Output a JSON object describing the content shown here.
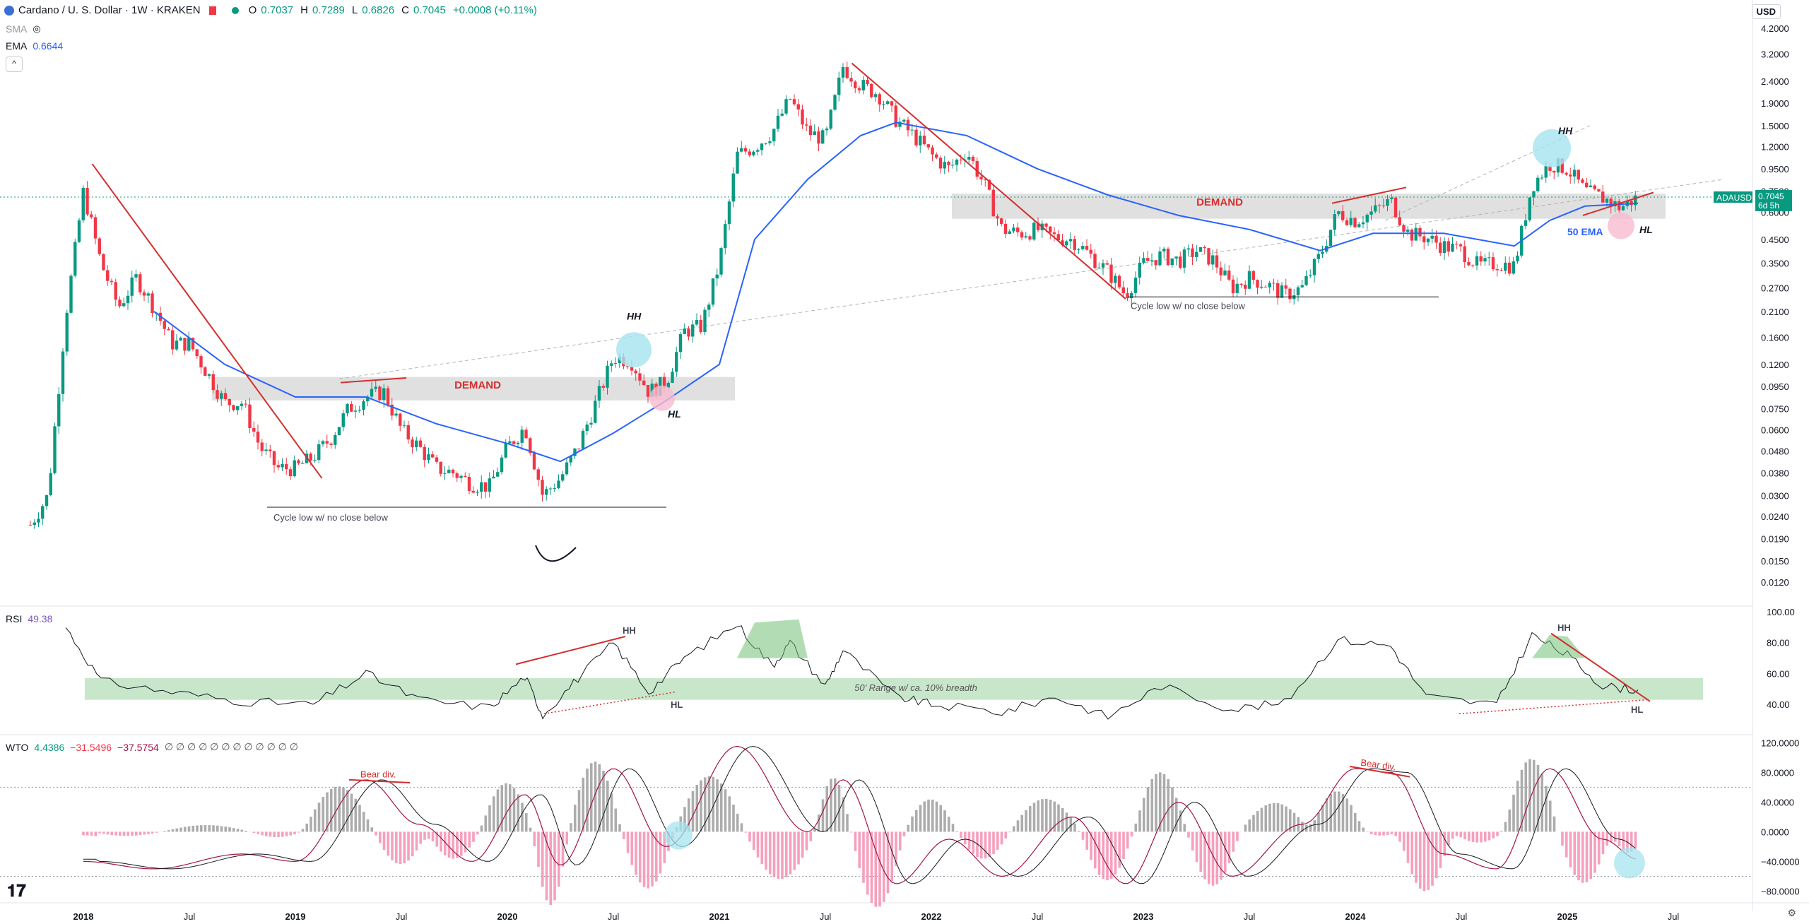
{
  "header": {
    "symbol": "Cardano / U. S. Dollar · 1W · KRAKEN",
    "o_label": "O",
    "o": "0.7037",
    "h_label": "H",
    "h": "0.7289",
    "l_label": "L",
    "l": "0.6826",
    "c_label": "C",
    "c": "0.7045",
    "change": "+0.0008 (+0.11%)"
  },
  "indicators": {
    "sma_label": "SMA",
    "ema_label": "EMA",
    "ema_value": "0.6644",
    "rsi_label": "RSI",
    "rsi_value": "49.38",
    "wto_label": "WTO",
    "wto_v1": "4.4386",
    "wto_v2": "−31.5496",
    "wto_v3": "−37.5754",
    "wto_rest": "∅ ∅ ∅ ∅ ∅ ∅ ∅ ∅ ∅ ∅ ∅ ∅"
  },
  "currency": "USD",
  "collapse_glyph": "^",
  "colors": {
    "up": "#089981",
    "down": "#f23645",
    "ema": "#2962ff",
    "trend": "#d32f2f",
    "demand": "#e0e0e0",
    "rsi_band": "#c8e6c9",
    "hh_circle": "#a5e4ef",
    "hl_circle": "#f8bbd0"
  },
  "chart_data": [
    {
      "type": "candlestick",
      "title": "Cardano / U. S. Dollar · 1W · KRAKEN",
      "scale": "log",
      "y_ticks": [
        "4.2000",
        "3.2000",
        "2.4000",
        "1.9000",
        "1.5000",
        "1.2000",
        "0.9500",
        "0.7500",
        "0.6000",
        "0.4500",
        "0.3500",
        "0.2700",
        "0.2100",
        "0.1600",
        "0.1200",
        "0.0950",
        "0.0750",
        "0.0600",
        "0.0480",
        "0.0380",
        "0.0300",
        "0.0240",
        "0.0190",
        "0.0150",
        "0.0120"
      ],
      "x_ticks": [
        "2018",
        "Jul",
        "2019",
        "Jul",
        "2020",
        "Jul",
        "2021",
        "Jul",
        "2022",
        "Jul",
        "2023",
        "Jul",
        "2024",
        "Jul",
        "2025",
        "Jul"
      ],
      "price_label": {
        "symbol": "ADAUSD",
        "value": "0.7045",
        "countdown": "6d 5h"
      },
      "ema_series_name": "50 EMA",
      "annotations": [
        "DEMAND",
        "DEMAND",
        "HH",
        "HL",
        "HH",
        "HL",
        "Cycle low w/ no close below",
        "Cycle low w/ no close below",
        "50 EMA"
      ],
      "close_path": [
        [
          "2017-10",
          0.022
        ],
        [
          "2017-11",
          0.03
        ],
        [
          "2017-12",
          0.2
        ],
        [
          "2018-01",
          0.75
        ],
        [
          "2018-02",
          0.35
        ],
        [
          "2018-03",
          0.22
        ],
        [
          "2018-04",
          0.3
        ],
        [
          "2018-05",
          0.22
        ],
        [
          "2018-06",
          0.15
        ],
        [
          "2018-07",
          0.15
        ],
        [
          "2018-08",
          0.11
        ],
        [
          "2018-09",
          0.08
        ],
        [
          "2018-10",
          0.08
        ],
        [
          "2018-11",
          0.05
        ],
        [
          "2018-12",
          0.04
        ],
        [
          "2019-01",
          0.04
        ],
        [
          "2019-02",
          0.045
        ],
        [
          "2019-03",
          0.055
        ],
        [
          "2019-04",
          0.075
        ],
        [
          "2019-05",
          0.085
        ],
        [
          "2019-06",
          0.09
        ],
        [
          "2019-07",
          0.06
        ],
        [
          "2019-08",
          0.05
        ],
        [
          "2019-09",
          0.04
        ],
        [
          "2019-10",
          0.038
        ],
        [
          "2019-11",
          0.034
        ],
        [
          "2019-12",
          0.033
        ],
        [
          "2020-01",
          0.05
        ],
        [
          "2020-02",
          0.062
        ],
        [
          "2020-03",
          0.03
        ],
        [
          "2020-04",
          0.036
        ],
        [
          "2020-05",
          0.05
        ],
        [
          "2020-06",
          0.08
        ],
        [
          "2020-07",
          0.13
        ],
        [
          "2020-08",
          0.125
        ],
        [
          "2020-09",
          0.09
        ],
        [
          "2020-10",
          0.1
        ],
        [
          "2020-11",
          0.17
        ],
        [
          "2020-12",
          0.18
        ],
        [
          "2021-01",
          0.35
        ],
        [
          "2021-02",
          1.1
        ],
        [
          "2021-03",
          1.2
        ],
        [
          "2021-04",
          1.4
        ],
        [
          "2021-05",
          2.0
        ],
        [
          "2021-06",
          1.4
        ],
        [
          "2021-07",
          1.3
        ],
        [
          "2021-08",
          2.8
        ],
        [
          "2021-09",
          2.3
        ],
        [
          "2021-10",
          2.1
        ],
        [
          "2021-11",
          1.6
        ],
        [
          "2021-12",
          1.35
        ],
        [
          "2022-01",
          1.1
        ],
        [
          "2022-02",
          0.95
        ],
        [
          "2022-03",
          1.15
        ],
        [
          "2022-04",
          0.8
        ],
        [
          "2022-05",
          0.5
        ],
        [
          "2022-06",
          0.48
        ],
        [
          "2022-07",
          0.5
        ],
        [
          "2022-08",
          0.46
        ],
        [
          "2022-09",
          0.45
        ],
        [
          "2022-10",
          0.38
        ],
        [
          "2022-11",
          0.32
        ],
        [
          "2022-12",
          0.25
        ],
        [
          "2023-01",
          0.35
        ],
        [
          "2023-02",
          0.38
        ],
        [
          "2023-03",
          0.36
        ],
        [
          "2023-04",
          0.4
        ],
        [
          "2023-05",
          0.36
        ],
        [
          "2023-06",
          0.27
        ],
        [
          "2023-07",
          0.3
        ],
        [
          "2023-08",
          0.28
        ],
        [
          "2023-09",
          0.25
        ],
        [
          "2023-10",
          0.27
        ],
        [
          "2023-11",
          0.38
        ],
        [
          "2023-12",
          0.6
        ],
        [
          "2024-01",
          0.55
        ],
        [
          "2024-02",
          0.6
        ],
        [
          "2024-03",
          0.68
        ],
        [
          "2024-04",
          0.48
        ],
        [
          "2024-05",
          0.46
        ],
        [
          "2024-06",
          0.42
        ],
        [
          "2024-07",
          0.4
        ],
        [
          "2024-08",
          0.34
        ],
        [
          "2024-09",
          0.35
        ],
        [
          "2024-10",
          0.34
        ],
        [
          "2024-11",
          0.8
        ],
        [
          "2024-12",
          1.0
        ],
        [
          "2025-01",
          0.95
        ],
        [
          "2025-02",
          0.75
        ],
        [
          "2025-03",
          0.7
        ],
        [
          "2025-04",
          0.63
        ],
        [
          "2025-05",
          0.7045
        ]
      ],
      "ema_path": [
        [
          "2018-05",
          0.21
        ],
        [
          "2018-09",
          0.12
        ],
        [
          "2019-01",
          0.085
        ],
        [
          "2019-05",
          0.085
        ],
        [
          "2019-09",
          0.064
        ],
        [
          "2020-01",
          0.052
        ],
        [
          "2020-04",
          0.043
        ],
        [
          "2020-07",
          0.058
        ],
        [
          "2020-10",
          0.082
        ],
        [
          "2021-01",
          0.12
        ],
        [
          "2021-03",
          0.45
        ],
        [
          "2021-06",
          0.85
        ],
        [
          "2021-09",
          1.35
        ],
        [
          "2021-11",
          1.55
        ],
        [
          "2022-03",
          1.35
        ],
        [
          "2022-07",
          0.95
        ],
        [
          "2022-11",
          0.72
        ],
        [
          "2023-03",
          0.58
        ],
        [
          "2023-07",
          0.5
        ],
        [
          "2023-11",
          0.4
        ],
        [
          "2024-02",
          0.48
        ],
        [
          "2024-06",
          0.48
        ],
        [
          "2024-10",
          0.42
        ],
        [
          "2024-12",
          0.55
        ],
        [
          "2025-02",
          0.64
        ],
        [
          "2025-05",
          0.66
        ]
      ]
    },
    {
      "type": "line",
      "title": "RSI 49.38",
      "y_ticks": [
        "100.00",
        "80.00",
        "60.00",
        "40.00"
      ],
      "ylim": [
        25,
        100
      ],
      "band_label": "50' Range w/ ca. 10% breadth",
      "band_range": [
        45,
        55
      ],
      "annotations": [
        "HH",
        "HL",
        "HH",
        "HL"
      ],
      "points": [
        [
          "2017-12",
          90
        ],
        [
          "2018-02",
          55
        ],
        [
          "2018-06",
          48
        ],
        [
          "2018-10",
          42
        ],
        [
          "2019-02",
          40
        ],
        [
          "2019-05",
          60
        ],
        [
          "2019-08",
          43
        ],
        [
          "2019-12",
          38
        ],
        [
          "2020-02",
          58
        ],
        [
          "2020-03",
          33
        ],
        [
          "2020-05",
          57
        ],
        [
          "2020-07",
          80
        ],
        [
          "2020-09",
          48
        ],
        [
          "2020-11",
          70
        ],
        [
          "2021-02",
          92
        ],
        [
          "2021-04",
          65
        ],
        [
          "2021-05",
          80
        ],
        [
          "2021-07",
          52
        ],
        [
          "2021-08",
          75
        ],
        [
          "2021-11",
          45
        ],
        [
          "2022-01",
          40
        ],
        [
          "2022-05",
          35
        ],
        [
          "2022-08",
          45
        ],
        [
          "2022-11",
          32
        ],
        [
          "2023-02",
          52
        ],
        [
          "2023-06",
          37
        ],
        [
          "2023-09",
          41
        ],
        [
          "2023-12",
          82
        ],
        [
          "2024-03",
          78
        ],
        [
          "2024-05",
          45
        ],
        [
          "2024-09",
          40
        ],
        [
          "2024-11",
          85
        ],
        [
          "2025-01",
          72
        ],
        [
          "2025-03",
          52
        ],
        [
          "2025-05",
          49.38
        ]
      ]
    },
    {
      "type": "line",
      "title": "WTO 4.4386 −31.5496 −37.5754",
      "y_ticks": [
        "120.0000",
        "80.0000",
        "40.0000",
        "0.0000",
        "−40.0000",
        "−80.0000"
      ],
      "ylim": [
        -90,
        125
      ],
      "annotations": [
        "Bear div.",
        "Bear div."
      ],
      "points": [
        [
          "2018-01",
          -40
        ],
        [
          "2018-05",
          -50
        ],
        [
          "2018-10",
          -30
        ],
        [
          "2019-01",
          -40
        ],
        [
          "2019-05",
          70
        ],
        [
          "2019-08",
          10
        ],
        [
          "2019-11",
          -40
        ],
        [
          "2020-02",
          50
        ],
        [
          "2020-04",
          -45
        ],
        [
          "2020-07",
          85
        ],
        [
          "2020-10",
          -20
        ],
        [
          "2021-02",
          115
        ],
        [
          "2021-06",
          0
        ],
        [
          "2021-08",
          70
        ],
        [
          "2021-11",
          -70
        ],
        [
          "2022-02",
          -10
        ],
        [
          "2022-05",
          -60
        ],
        [
          "2022-09",
          20
        ],
        [
          "2022-12",
          -70
        ],
        [
          "2023-03",
          40
        ],
        [
          "2023-06",
          -60
        ],
        [
          "2023-10",
          10
        ],
        [
          "2024-01",
          85
        ],
        [
          "2024-03",
          80
        ],
        [
          "2024-06",
          -30
        ],
        [
          "2024-09",
          -50
        ],
        [
          "2024-12",
          85
        ],
        [
          "2025-03",
          -10
        ],
        [
          "2025-05",
          -37
        ]
      ]
    }
  ]
}
